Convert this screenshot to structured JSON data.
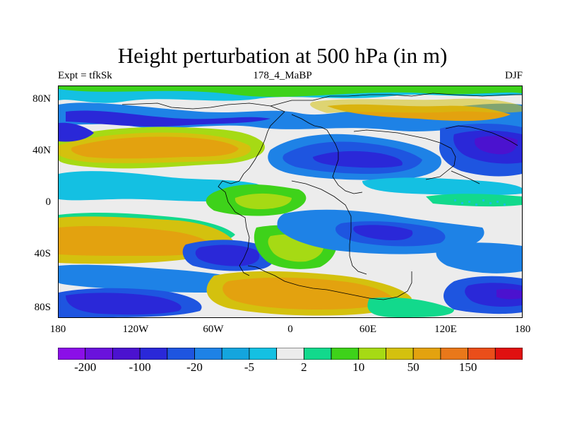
{
  "title": "Height perturbation at 500 hPa (in m)",
  "left_string": "Expt = tfkSk",
  "center_string": "178_4_MaBP",
  "right_string": "DJF",
  "map": {
    "projection": "cylindrical equidistant",
    "lon_range": [
      -180,
      180
    ],
    "lat_range": [
      -90,
      90
    ],
    "x_ticks": [
      "180",
      "120W",
      "60W",
      "0",
      "60E",
      "120E",
      "180"
    ],
    "y_ticks": [
      "80N",
      "40N",
      "0",
      "40S",
      "80S"
    ],
    "coastlines": true
  },
  "colorbar": {
    "colors": [
      "#8b0fe8",
      "#6a12dc",
      "#4b12cf",
      "#2a28d8",
      "#1e55e0",
      "#1e82e6",
      "#14a5de",
      "#14c0e2",
      "#ececec",
      "#12d98c",
      "#3ed21a",
      "#a6da14",
      "#d4c10e",
      "#e3a20f",
      "#e9781a",
      "#ea4e1a",
      "#e01010"
    ],
    "labels": [
      "-200",
      "-100",
      "-20",
      "-5",
      "2",
      "10",
      "50",
      "150"
    ],
    "label_boundary_index": [
      1,
      3,
      5,
      7,
      9,
      11,
      13,
      15
    ]
  }
}
